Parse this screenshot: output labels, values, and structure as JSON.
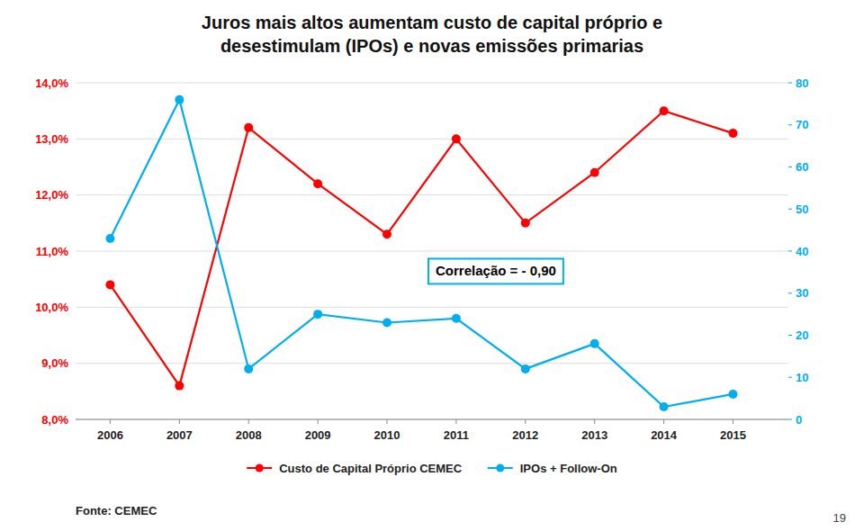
{
  "chart_data": {
    "type": "line",
    "title": [
      "Juros mais altos aumentam custo de capital próprio e",
      "desestimulam (IPOs) e novas emissões primarias"
    ],
    "x": [
      2006,
      2007,
      2008,
      2009,
      2010,
      2011,
      2012,
      2013,
      2014,
      2015
    ],
    "xlim": [
      2005.5,
      2015.8
    ],
    "xticks": [
      2006,
      2007,
      2008,
      2009,
      2010,
      2011,
      2012,
      2013,
      2014,
      2015
    ],
    "ylim": [
      0.08,
      0.14
    ],
    "yticks": [
      {
        "value": 0.08,
        "label": "8,0%"
      },
      {
        "value": 0.09,
        "label": "9,0%"
      },
      {
        "value": 0.1,
        "label": "10,0%"
      },
      {
        "value": 0.11,
        "label": "11,0%"
      },
      {
        "value": 0.12,
        "label": "12,0%"
      },
      {
        "value": 0.13,
        "label": "13,0%"
      },
      {
        "value": 0.14,
        "label": "14,0%"
      }
    ],
    "y2lim": [
      0,
      80
    ],
    "y2ticks": [
      0,
      10,
      20,
      30,
      40,
      50,
      60,
      70,
      80
    ],
    "series": [
      {
        "name": "Custo de Capital Próprio CEMEC",
        "color": "#FF0000",
        "marker": "circle",
        "values": [
          0.104,
          0.086,
          0.132,
          0.122,
          0.113,
          0.13,
          0.115,
          0.124,
          0.135,
          0.131
        ]
      },
      {
        "name": "IPOs + Follow-On",
        "color": "#00AEEF",
        "marker": "circle",
        "axis": "y2",
        "values": [
          43,
          76,
          12,
          25,
          23,
          24,
          12,
          18,
          3,
          6
        ]
      }
    ],
    "annotations": [
      "Correlação = - 0,90",
      "Fonte: CEMEC",
      "19"
    ],
    "grid": true,
    "legend": "bottom"
  }
}
